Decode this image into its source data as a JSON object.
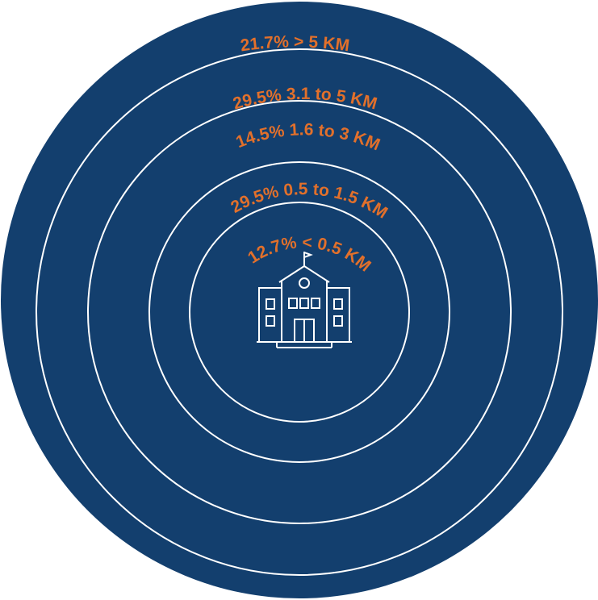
{
  "colors": {
    "disc": "#133f6e",
    "rings": "#ffffff",
    "labels": "#e2702b",
    "icon": "#ffffff"
  },
  "center_icon": "school-building-icon",
  "zones": [
    {
      "label": "21.7% > 5 KM",
      "share_percent": 21.7,
      "range": "> 5 KM"
    },
    {
      "label": "29.5% 3.1 to 5 KM",
      "share_percent": 29.5,
      "range": "3.1 to 5 KM"
    },
    {
      "label": "14.5% 1.6 to 3 KM",
      "share_percent": 14.5,
      "range": "1.6 to 3 KM"
    },
    {
      "label": "29.5% 0.5 to 1.5 KM",
      "share_percent": 29.5,
      "range": "0.5 to 1.5 KM"
    },
    {
      "label": "12.7% < 0.5 KM",
      "share_percent": 12.7,
      "range": "< 0.5 KM"
    }
  ]
}
